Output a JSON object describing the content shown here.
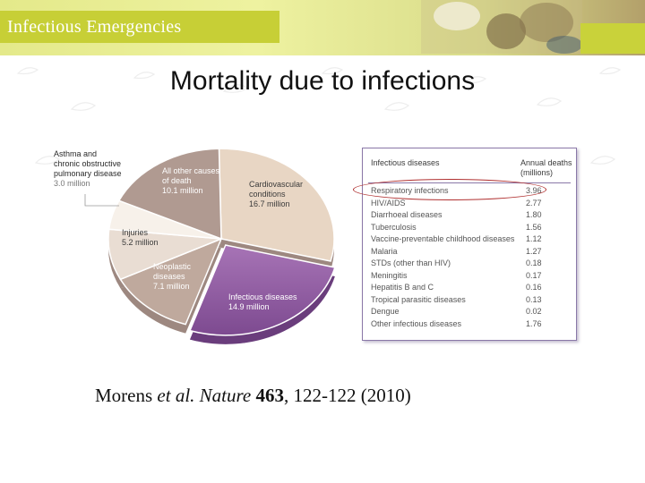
{
  "header": {
    "title": "Infectious Emergencies"
  },
  "slide_title": "Mortality due to infections",
  "chart_data": {
    "type": "pie",
    "title": "",
    "unit": "million",
    "slices": [
      {
        "label": "Cardiovascular conditions",
        "value": 16.7,
        "value_text": "16.7 million",
        "color": "#e8d6c4"
      },
      {
        "label": "Infectious diseases",
        "value": 14.9,
        "value_text": "14.9 million",
        "color": "#9a64aa"
      },
      {
        "label": "Neoplastic diseases",
        "value": 7.1,
        "value_text": "7.1 million",
        "color": "#bfa99d"
      },
      {
        "label": "Injuries",
        "value": 5.2,
        "value_text": "5.2 million",
        "color": "#e9ddd3"
      },
      {
        "label": "Asthma and chronic obstructive pulmonary disease",
        "value": 3.0,
        "value_text": "3.0 million",
        "color": "#f7f1ea"
      },
      {
        "label": "All other causes of death",
        "value": 10.1,
        "value_text": "10.1 million",
        "color": "#b09a91"
      }
    ]
  },
  "labels": {
    "cardio": {
      "l1": "Cardiovascular",
      "l2": "conditions",
      "num": "16.7 million"
    },
    "infect": {
      "l1": "Infectious diseases",
      "num": "14.9 million"
    },
    "neo": {
      "l1": "Neoplastic",
      "l2": "diseases",
      "num": "7.1 million"
    },
    "injuries": {
      "l1": "Injuries",
      "num": "5.2 million"
    },
    "asthma": {
      "l1": "Asthma and",
      "l2": "chronic obstructive",
      "l3": "pulmonary disease",
      "num": "3.0 million"
    },
    "other": {
      "l1": "All other causes",
      "l2": "of death",
      "num": "10.1 million"
    }
  },
  "table": {
    "header_name": "Infectious diseases",
    "header_deaths_1": "Annual deaths",
    "header_deaths_2": "(millions)",
    "rows": [
      {
        "name": "Respiratory infections",
        "value": "3.96"
      },
      {
        "name": "HIV/AIDS",
        "value": "2.77"
      },
      {
        "name": "Diarrhoeal diseases",
        "value": "1.80"
      },
      {
        "name": "Tuberculosis",
        "value": "1.56"
      },
      {
        "name": "Vaccine-preventable childhood diseases",
        "value": "1.12"
      },
      {
        "name": "Malaria",
        "value": "1.27"
      },
      {
        "name": "STDs (other than HIV)",
        "value": "0.18"
      },
      {
        "name": "Meningitis",
        "value": "0.17"
      },
      {
        "name": "Hepatitis B and C",
        "value": "0.16"
      },
      {
        "name": "Tropical parasitic diseases",
        "value": "0.13"
      },
      {
        "name": "Dengue",
        "value": "0.02"
      },
      {
        "name": "Other infectious diseases",
        "value": "1.76"
      }
    ]
  },
  "citation": {
    "authors": "Morens ",
    "etal": "et al.",
    "journal": " Nature ",
    "volume": "463",
    "pages": ", 122-122 (2010)"
  }
}
